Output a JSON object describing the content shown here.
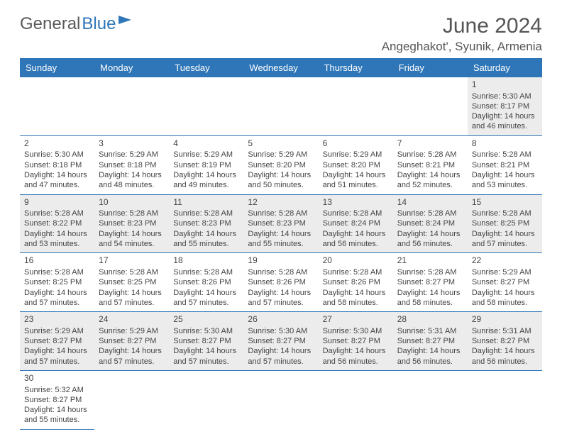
{
  "logo": {
    "part1": "General",
    "part2": "Blue"
  },
  "title": "June 2024",
  "location": "Angeghakot', Syunik, Armenia",
  "colors": {
    "header_bg": "#2f76b8",
    "header_text": "#ffffff",
    "row_alt": "#ececec",
    "border": "#2f76b8"
  },
  "daynames": [
    "Sunday",
    "Monday",
    "Tuesday",
    "Wednesday",
    "Thursday",
    "Friday",
    "Saturday"
  ],
  "weeks": [
    [
      null,
      null,
      null,
      null,
      null,
      null,
      {
        "n": "1",
        "sr": "Sunrise: 5:30 AM",
        "ss": "Sunset: 8:17 PM",
        "d1": "Daylight: 14 hours",
        "d2": "and 46 minutes."
      }
    ],
    [
      {
        "n": "2",
        "sr": "Sunrise: 5:30 AM",
        "ss": "Sunset: 8:18 PM",
        "d1": "Daylight: 14 hours",
        "d2": "and 47 minutes."
      },
      {
        "n": "3",
        "sr": "Sunrise: 5:29 AM",
        "ss": "Sunset: 8:18 PM",
        "d1": "Daylight: 14 hours",
        "d2": "and 48 minutes."
      },
      {
        "n": "4",
        "sr": "Sunrise: 5:29 AM",
        "ss": "Sunset: 8:19 PM",
        "d1": "Daylight: 14 hours",
        "d2": "and 49 minutes."
      },
      {
        "n": "5",
        "sr": "Sunrise: 5:29 AM",
        "ss": "Sunset: 8:20 PM",
        "d1": "Daylight: 14 hours",
        "d2": "and 50 minutes."
      },
      {
        "n": "6",
        "sr": "Sunrise: 5:29 AM",
        "ss": "Sunset: 8:20 PM",
        "d1": "Daylight: 14 hours",
        "d2": "and 51 minutes."
      },
      {
        "n": "7",
        "sr": "Sunrise: 5:28 AM",
        "ss": "Sunset: 8:21 PM",
        "d1": "Daylight: 14 hours",
        "d2": "and 52 minutes."
      },
      {
        "n": "8",
        "sr": "Sunrise: 5:28 AM",
        "ss": "Sunset: 8:21 PM",
        "d1": "Daylight: 14 hours",
        "d2": "and 53 minutes."
      }
    ],
    [
      {
        "n": "9",
        "sr": "Sunrise: 5:28 AM",
        "ss": "Sunset: 8:22 PM",
        "d1": "Daylight: 14 hours",
        "d2": "and 53 minutes."
      },
      {
        "n": "10",
        "sr": "Sunrise: 5:28 AM",
        "ss": "Sunset: 8:23 PM",
        "d1": "Daylight: 14 hours",
        "d2": "and 54 minutes."
      },
      {
        "n": "11",
        "sr": "Sunrise: 5:28 AM",
        "ss": "Sunset: 8:23 PM",
        "d1": "Daylight: 14 hours",
        "d2": "and 55 minutes."
      },
      {
        "n": "12",
        "sr": "Sunrise: 5:28 AM",
        "ss": "Sunset: 8:23 PM",
        "d1": "Daylight: 14 hours",
        "d2": "and 55 minutes."
      },
      {
        "n": "13",
        "sr": "Sunrise: 5:28 AM",
        "ss": "Sunset: 8:24 PM",
        "d1": "Daylight: 14 hours",
        "d2": "and 56 minutes."
      },
      {
        "n": "14",
        "sr": "Sunrise: 5:28 AM",
        "ss": "Sunset: 8:24 PM",
        "d1": "Daylight: 14 hours",
        "d2": "and 56 minutes."
      },
      {
        "n": "15",
        "sr": "Sunrise: 5:28 AM",
        "ss": "Sunset: 8:25 PM",
        "d1": "Daylight: 14 hours",
        "d2": "and 57 minutes."
      }
    ],
    [
      {
        "n": "16",
        "sr": "Sunrise: 5:28 AM",
        "ss": "Sunset: 8:25 PM",
        "d1": "Daylight: 14 hours",
        "d2": "and 57 minutes."
      },
      {
        "n": "17",
        "sr": "Sunrise: 5:28 AM",
        "ss": "Sunset: 8:25 PM",
        "d1": "Daylight: 14 hours",
        "d2": "and 57 minutes."
      },
      {
        "n": "18",
        "sr": "Sunrise: 5:28 AM",
        "ss": "Sunset: 8:26 PM",
        "d1": "Daylight: 14 hours",
        "d2": "and 57 minutes."
      },
      {
        "n": "19",
        "sr": "Sunrise: 5:28 AM",
        "ss": "Sunset: 8:26 PM",
        "d1": "Daylight: 14 hours",
        "d2": "and 57 minutes."
      },
      {
        "n": "20",
        "sr": "Sunrise: 5:28 AM",
        "ss": "Sunset: 8:26 PM",
        "d1": "Daylight: 14 hours",
        "d2": "and 58 minutes."
      },
      {
        "n": "21",
        "sr": "Sunrise: 5:28 AM",
        "ss": "Sunset: 8:27 PM",
        "d1": "Daylight: 14 hours",
        "d2": "and 58 minutes."
      },
      {
        "n": "22",
        "sr": "Sunrise: 5:29 AM",
        "ss": "Sunset: 8:27 PM",
        "d1": "Daylight: 14 hours",
        "d2": "and 58 minutes."
      }
    ],
    [
      {
        "n": "23",
        "sr": "Sunrise: 5:29 AM",
        "ss": "Sunset: 8:27 PM",
        "d1": "Daylight: 14 hours",
        "d2": "and 57 minutes."
      },
      {
        "n": "24",
        "sr": "Sunrise: 5:29 AM",
        "ss": "Sunset: 8:27 PM",
        "d1": "Daylight: 14 hours",
        "d2": "and 57 minutes."
      },
      {
        "n": "25",
        "sr": "Sunrise: 5:30 AM",
        "ss": "Sunset: 8:27 PM",
        "d1": "Daylight: 14 hours",
        "d2": "and 57 minutes."
      },
      {
        "n": "26",
        "sr": "Sunrise: 5:30 AM",
        "ss": "Sunset: 8:27 PM",
        "d1": "Daylight: 14 hours",
        "d2": "and 57 minutes."
      },
      {
        "n": "27",
        "sr": "Sunrise: 5:30 AM",
        "ss": "Sunset: 8:27 PM",
        "d1": "Daylight: 14 hours",
        "d2": "and 56 minutes."
      },
      {
        "n": "28",
        "sr": "Sunrise: 5:31 AM",
        "ss": "Sunset: 8:27 PM",
        "d1": "Daylight: 14 hours",
        "d2": "and 56 minutes."
      },
      {
        "n": "29",
        "sr": "Sunrise: 5:31 AM",
        "ss": "Sunset: 8:27 PM",
        "d1": "Daylight: 14 hours",
        "d2": "and 56 minutes."
      }
    ],
    [
      {
        "n": "30",
        "sr": "Sunrise: 5:32 AM",
        "ss": "Sunset: 8:27 PM",
        "d1": "Daylight: 14 hours",
        "d2": "and 55 minutes."
      },
      null,
      null,
      null,
      null,
      null,
      null
    ]
  ]
}
